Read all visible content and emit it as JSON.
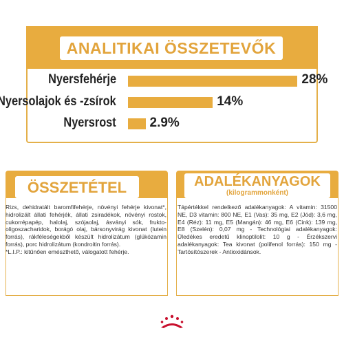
{
  "analytical": {
    "title": "ANALITIKAI ÖSSZETEVŐK",
    "rows": [
      {
        "label": "Nyersfehérje",
        "percent": 28,
        "value_text": "28%"
      },
      {
        "label": "Nyersolajok és -zsírok",
        "percent": 14,
        "value_text": "14%"
      },
      {
        "label": "Nyersrost",
        "percent": 2.9,
        "value_text": "2.9%"
      }
    ]
  },
  "composition": {
    "title": "ÖSSZETÉTEL",
    "text": "Rizs, dehidratált baromfifehérje, növényi fehérje kivonat*, hidrolizált állati fehérjék, állati zsiradékok, növényi rostok, cukorrépapép, halolaj, szójaolaj, ásványi sók, frukto-oligoszacharidok, borágó olaj, bársonyvirág kivonat (lutein forrás), rákféleségekből készült hidrolizátum (glükózamin forrás), porc hidrolizátum (kondroitin forrás).",
    "footnote": "*L.I.P.: kitűnően emészthető, válogatott fehérje."
  },
  "additives": {
    "title": "ADALÉKANYAGOK",
    "subtitle": "(kilogrammonként)",
    "text": "Tápértékkel rendelkező adalékanyagok: A vitamin: 31500 NE, D3 vitamin: 800 NE, E1 (Vas): 35 mg, E2 (Jód): 3,6 mg, E4 (Réz): 11 mg, E5 (Mangán): 46 mg, E6 (Cink): 139 mg, E8 (Szelén): 0,07 mg - Technológiai adalékanyagok: Üledékes eredetű klinoptilolit: 10 g - Érzékszervi adalékanyagok: Tea kivonat (polifenol forrás): 150 mg - Tartósítószerek - Antioxidánsok."
  },
  "colors": {
    "accent": "#e8ac3f",
    "brand_red": "#c8102e"
  },
  "logo": {
    "icon": "royal-canin-crown-icon"
  }
}
